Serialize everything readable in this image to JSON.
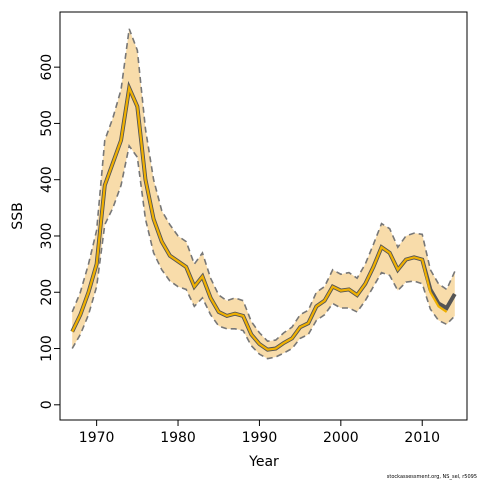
{
  "chart_data": {
    "type": "line",
    "xlabel": "Year",
    "ylabel": "SSB",
    "footnote": "stockassessment.org, NS_sel, r5095",
    "x": [
      1967,
      1968,
      1969,
      1970,
      1971,
      1972,
      1973,
      1974,
      1975,
      1976,
      1977,
      1978,
      1979,
      1980,
      1981,
      1982,
      1983,
      1984,
      1985,
      1986,
      1987,
      1988,
      1989,
      1990,
      1991,
      1992,
      1993,
      1994,
      1995,
      1996,
      1997,
      1998,
      1999,
      2000,
      2001,
      2002,
      2003,
      2004,
      2005,
      2006,
      2007,
      2008,
      2009,
      2010,
      2011,
      2012,
      2013,
      2014
    ],
    "series": [
      {
        "color": "#555555",
        "values": [
          130,
          160,
          200,
          250,
          390,
          430,
          470,
          563,
          530,
          400,
          330,
          290,
          265,
          255,
          245,
          210,
          228,
          190,
          165,
          158,
          162,
          158,
          125,
          108,
          98,
          100,
          110,
          118,
          138,
          145,
          175,
          185,
          210,
          203,
          205,
          195,
          215,
          245,
          280,
          270,
          240,
          258,
          262,
          258,
          205,
          180,
          172,
          197
        ]
      },
      {
        "color": "#f0b000",
        "values": [
          130,
          160,
          200,
          250,
          390,
          430,
          470,
          563,
          530,
          400,
          330,
          290,
          265,
          255,
          245,
          210,
          228,
          190,
          165,
          158,
          162,
          158,
          125,
          108,
          98,
          100,
          110,
          118,
          138,
          145,
          175,
          185,
          210,
          203,
          205,
          195,
          215,
          245,
          280,
          270,
          240,
          258,
          262,
          258,
          200,
          175,
          165,
          null
        ]
      }
    ],
    "band": {
      "color": "#f8dcaa",
      "edge_color": "#777777",
      "lower": [
        100,
        125,
        160,
        210,
        320,
        350,
        390,
        460,
        440,
        330,
        270,
        240,
        220,
        210,
        205,
        175,
        190,
        160,
        140,
        135,
        135,
        132,
        105,
        90,
        82,
        85,
        92,
        100,
        118,
        125,
        150,
        160,
        180,
        172,
        172,
        165,
        185,
        210,
        235,
        230,
        203,
        218,
        220,
        215,
        170,
        150,
        143,
        158
      ],
      "upper": [
        165,
        200,
        250,
        310,
        470,
        510,
        560,
        668,
        630,
        490,
        400,
        345,
        320,
        300,
        290,
        250,
        270,
        225,
        195,
        185,
        190,
        185,
        148,
        128,
        113,
        115,
        128,
        138,
        160,
        168,
        200,
        210,
        240,
        232,
        235,
        225,
        250,
        285,
        322,
        313,
        280,
        300,
        305,
        303,
        240,
        215,
        205,
        237
      ]
    },
    "xlim": [
      1965.5,
      2015.5
    ],
    "ylim": [
      -27,
      698
    ],
    "xticks": [
      1970,
      1980,
      1990,
      2000,
      2010
    ],
    "yticks": [
      0,
      100,
      200,
      300,
      400,
      500,
      600
    ]
  }
}
